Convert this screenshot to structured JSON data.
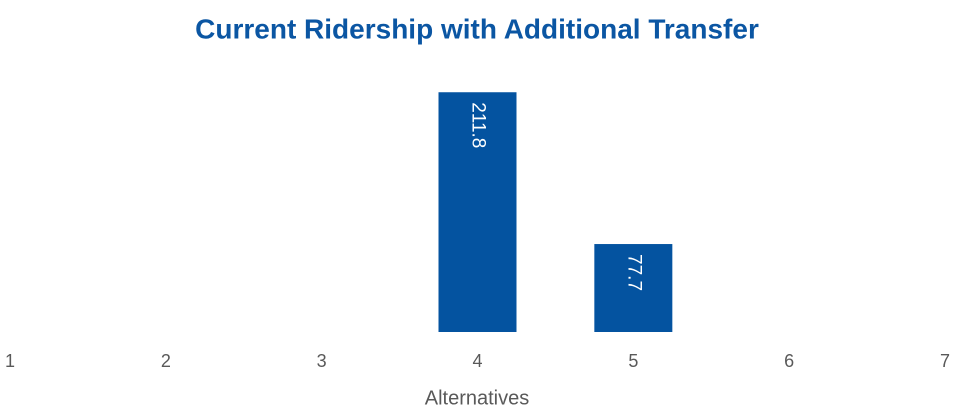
{
  "chart_data": {
    "type": "bar",
    "title": "Current Ridership with Additional Transfer",
    "x_label": "Alternatives",
    "categories": [
      "1",
      "2",
      "3",
      "4",
      "5",
      "6",
      "7"
    ],
    "values": [
      null,
      null,
      null,
      211.8,
      77.7,
      null,
      null
    ],
    "color": "#0453a0",
    "ylim": [
      0,
      250
    ],
    "grid": false
  }
}
